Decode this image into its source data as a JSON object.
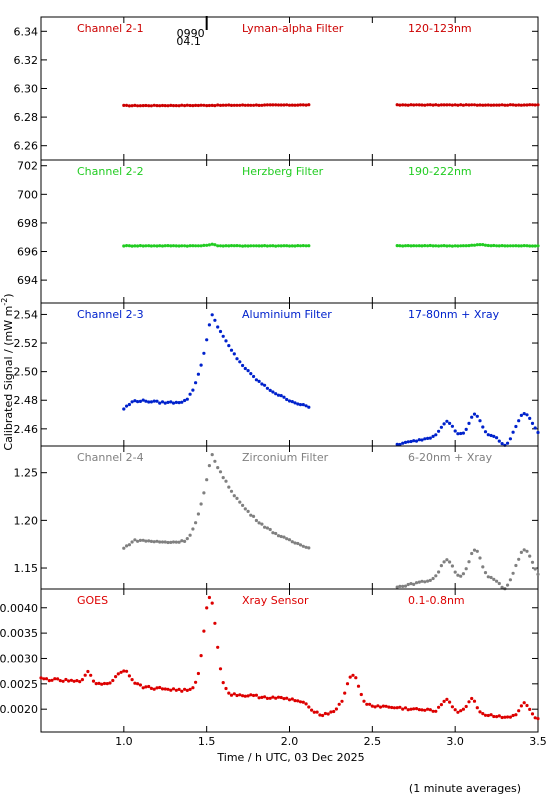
{
  "chart_data": {
    "type": "scatter",
    "xlabel": "Time / h UTC, 03 Dec 2025",
    "ylabel": "Calibrated Signal / (mW m",
    "ylabel_sup": "-2",
    "ylabel_close": ")",
    "footnote": "(1 minute averages)",
    "xlim": [
      0.5,
      3.5
    ],
    "x_ticks": [
      1.0,
      1.5,
      2.0,
      2.5,
      3.0,
      3.5
    ],
    "x_tick_labels": [
      "1.0",
      "1.5",
      "2.0",
      "2.5",
      "3.0",
      "3.5"
    ],
    "orbit_marker": {
      "x": 1.5,
      "label1": "0990",
      "label2": "04.1"
    },
    "panels": [
      {
        "name": "Channel 2-1",
        "filter": "Lyman-alpha Filter",
        "band": "120-123nm",
        "color": "#cc0000",
        "ylim": [
          6.25,
          6.35
        ],
        "y_ticks": [
          6.26,
          6.28,
          6.3,
          6.32,
          6.34
        ],
        "y_tick_labels": [
          "6.26",
          "6.28",
          "6.30",
          "6.32",
          "6.34"
        ],
        "profile": "flat",
        "seg1": [
          1.0,
          2.13
        ],
        "seg2": [
          2.65,
          3.5
        ],
        "base": 6.288,
        "peak": 0.0,
        "tail": 0.0005,
        "seg2_base": 6.2885,
        "seg2_bumps": []
      },
      {
        "name": "Channel 2-2",
        "filter": "Herzberg Filter",
        "band": "190-222nm",
        "color": "#22cc22",
        "ylim": [
          692.4,
          702.4
        ],
        "y_ticks": [
          694,
          696,
          698,
          700,
          702
        ],
        "y_tick_labels": [
          "694",
          "696",
          "698",
          "700",
          "702"
        ],
        "profile": "flat",
        "seg1": [
          1.0,
          2.13
        ],
        "seg2": [
          2.65,
          3.5
        ],
        "base": 696.4,
        "peak": 0.1,
        "tail": 0.0,
        "seg2_base": 696.4,
        "seg2_bumps": [
          [
            3.15,
            0.08,
            0.05
          ]
        ]
      },
      {
        "name": "Channel 2-3",
        "filter": "Aluminium Filter",
        "band": "17-80nm + Xray",
        "color": "#0022cc",
        "ylim": [
          2.448,
          2.548
        ],
        "y_ticks": [
          2.46,
          2.48,
          2.5,
          2.52,
          2.54
        ],
        "y_tick_labels": [
          "2.46",
          "2.48",
          "2.50",
          "2.52",
          "2.54"
        ],
        "profile": "flare",
        "seg1": [
          1.0,
          2.13
        ],
        "seg2": [
          2.65,
          3.5
        ],
        "base": 2.479,
        "peak": 2.541,
        "tail": 2.466,
        "seg2_base": 2.449,
        "seg2_bumps": [
          [
            2.95,
            0.01,
            0.05
          ],
          [
            3.12,
            0.015,
            0.05
          ],
          [
            3.42,
            0.016,
            0.06
          ]
        ]
      },
      {
        "name": "Channel 2-4",
        "filter": "Zirconium Filter",
        "band": "6-20nm + Xray",
        "color": "#808080",
        "ylim": [
          1.128,
          1.278
        ],
        "y_ticks": [
          1.15,
          1.2,
          1.25
        ],
        "y_tick_labels": [
          "1.15",
          "1.20",
          "1.25"
        ],
        "profile": "flare",
        "seg1": [
          1.0,
          2.13
        ],
        "seg2": [
          2.65,
          3.5
        ],
        "base": 1.178,
        "peak": 1.27,
        "tail": 1.158,
        "seg2_base": 1.13,
        "seg2_bumps": [
          [
            2.95,
            0.02,
            0.05
          ],
          [
            3.12,
            0.03,
            0.05
          ],
          [
            3.42,
            0.03,
            0.06
          ]
        ]
      },
      {
        "name": "GOES",
        "filter": "Xray Sensor",
        "band": "0.1-0.8nm",
        "color": "#dd0000",
        "ylim": [
          0.00155,
          0.00437
        ],
        "y_ticks": [
          0.002,
          0.0025,
          0.003,
          0.0035,
          0.004
        ],
        "y_tick_labels": [
          "0.0020",
          "0.0025",
          "0.0030",
          "0.0035",
          "0.0040"
        ],
        "profile": "goes",
        "seg1": [
          0.5,
          3.5
        ],
        "seg2": null,
        "base": 0.00215,
        "peak": 0.00413,
        "tail": 0.00175,
        "seg2_base": 0.0,
        "seg2_bumps": [
          [
            0.78,
            0.0002,
            0.03
          ],
          [
            1.0,
            0.0003,
            0.06
          ],
          [
            2.38,
            0.0006,
            0.05
          ],
          [
            2.95,
            0.00025,
            0.04
          ],
          [
            3.1,
            0.0003,
            0.04
          ],
          [
            3.42,
            0.0003,
            0.04
          ]
        ]
      }
    ]
  }
}
